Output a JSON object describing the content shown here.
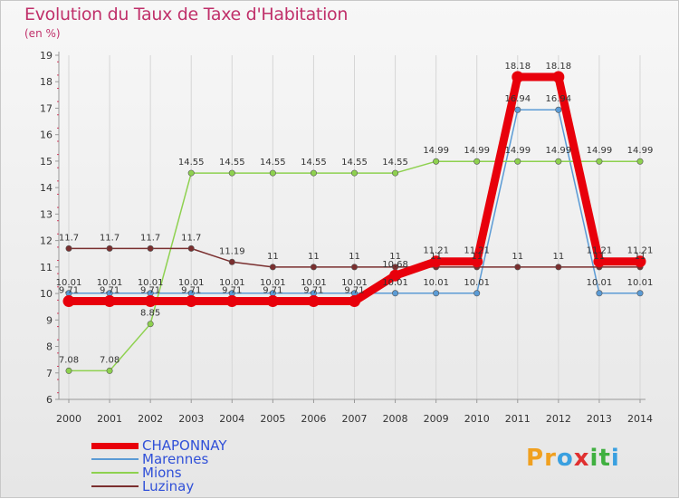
{
  "chart_data": {
    "type": "line",
    "title": "Evolution du Taux de Taxe d'Habitation",
    "subtitle": "(en %)",
    "x": [
      "2000",
      "2001",
      "2002",
      "2003",
      "2004",
      "2005",
      "2006",
      "2007",
      "2008",
      "2009",
      "2010",
      "2011",
      "2012",
      "2013",
      "2014"
    ],
    "ylim": [
      6,
      19
    ],
    "yticks": [
      6,
      7,
      8,
      9,
      10,
      11,
      12,
      13,
      14,
      15,
      16,
      17,
      18,
      19
    ],
    "grid": "vertical",
    "legend_position": "bottom-left",
    "series": [
      {
        "name": "Marennes",
        "color": "#5b9bd5",
        "values": [
          10.01,
          10.01,
          10.01,
          10.01,
          10.01,
          10.01,
          10.01,
          10.01,
          10.01,
          10.01,
          10.01,
          16.94,
          16.94,
          10.01,
          10.01
        ],
        "labels": [
          "10.01",
          "10.01",
          "10.01",
          "10.01",
          "10.01",
          "10.01",
          "10.01",
          "10.01",
          "10.01",
          "10.01",
          "10.01",
          "16.94",
          "16.94",
          "10.01",
          "10.01"
        ]
      },
      {
        "name": "Mions",
        "color": "#8ed14f",
        "values": [
          7.08,
          7.08,
          8.85,
          14.55,
          14.55,
          14.55,
          14.55,
          14.55,
          14.55,
          14.99,
          14.99,
          14.99,
          14.99,
          14.99,
          14.99
        ],
        "labels": [
          "7.08",
          "7.08",
          "8.85",
          "14.55",
          "14.55",
          "14.55",
          "14.55",
          "14.55",
          "14.55",
          "14.99",
          "14.99",
          "14.99",
          "14.99",
          "14.99",
          "14.99"
        ]
      },
      {
        "name": "Luzinay",
        "color": "#7a2f2f",
        "values": [
          11.7,
          11.7,
          11.7,
          11.7,
          11.19,
          11,
          11,
          11,
          11,
          11,
          11,
          11,
          11,
          11,
          11
        ],
        "labels": [
          "11.7",
          "11.7",
          "11.7",
          "11.7",
          "11.19",
          "11",
          "11",
          "11",
          "11",
          "11",
          "11",
          "11",
          "11",
          "11",
          "11"
        ]
      },
      {
        "name": "CHAPONNAY",
        "color": "#e8000b",
        "values": [
          9.71,
          9.71,
          9.71,
          9.71,
          9.71,
          9.71,
          9.71,
          9.71,
          10.68,
          11.21,
          11.21,
          18.18,
          18.18,
          11.21,
          11.21
        ],
        "labels": [
          "9.71",
          "9.71",
          "9.71",
          "9.71",
          "9.71",
          "9.71",
          "9.71",
          "9.71",
          "10.68",
          "11.21",
          "11.21",
          "18.18",
          "18.18",
          "11.21",
          "11.21"
        ]
      }
    ]
  },
  "legend": {
    "items": [
      {
        "name": "CHAPONNAY",
        "color": "#e8000b",
        "text_color": "#3050d8"
      },
      {
        "name": "Marennes",
        "color": "#5b9bd5",
        "text_color": "#3050d8"
      },
      {
        "name": "Mions",
        "color": "#8ed14f",
        "text_color": "#3050d8"
      },
      {
        "name": "Luzinay",
        "color": "#7a2f2f",
        "text_color": "#3050d8"
      }
    ]
  },
  "logo": {
    "letters": [
      "P",
      "r",
      "o",
      "x",
      "i",
      "t",
      "i"
    ],
    "colors": [
      "#f0a020",
      "#f0a020",
      "#3aa0e0",
      "#e03030",
      "#40b040",
      "#40b040",
      "#3aa0e0"
    ]
  }
}
